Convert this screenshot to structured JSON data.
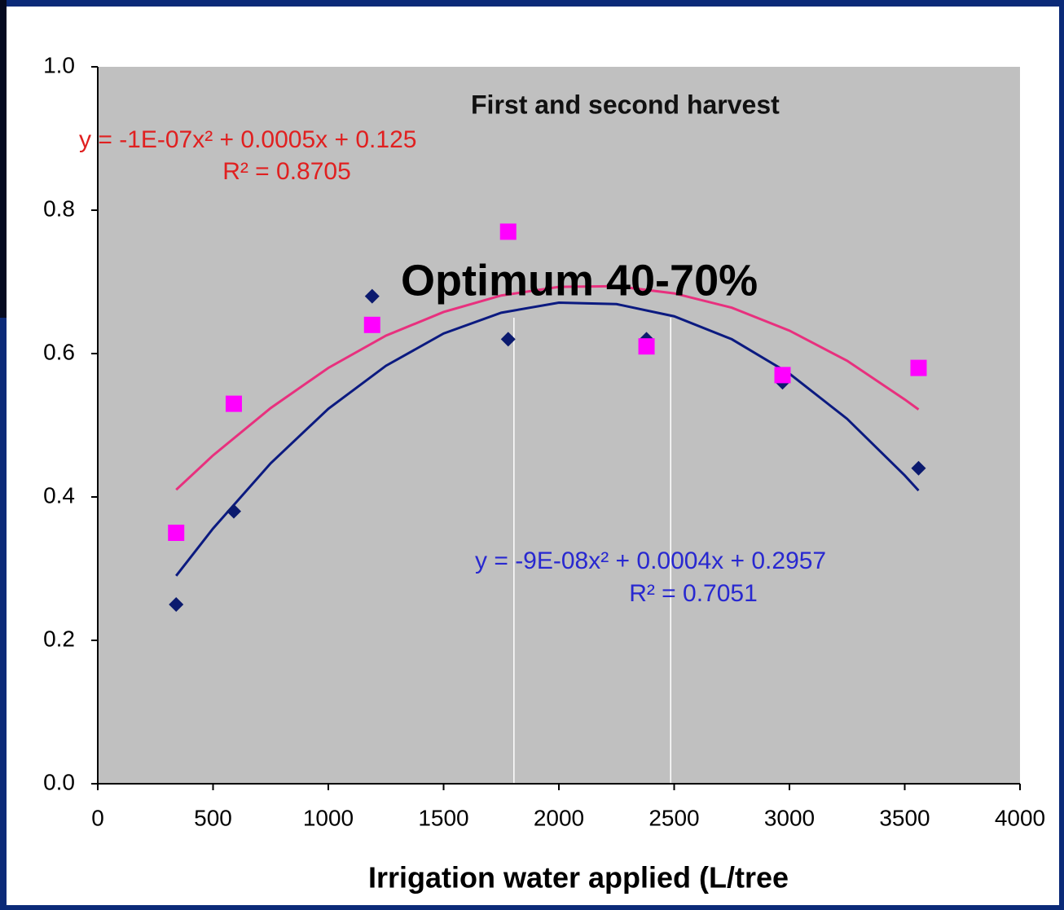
{
  "chart_data": {
    "type": "scatter",
    "title": "First and second harvest",
    "x_label": "Irrigation water applied (L/tree",
    "annotation": "Optimum 40-70%",
    "xlim": [
      0,
      4000
    ],
    "xticks": [
      0,
      500,
      1000,
      1500,
      2000,
      2500,
      3000,
      3500,
      4000
    ],
    "ylim": [
      0,
      1
    ],
    "yticks": [
      {
        "value": 0,
        "label": "0.0"
      },
      0.2,
      0.4,
      0.6,
      0.8,
      {
        "value": 1,
        "label": "1.0"
      }
    ],
    "grid": false,
    "reference_lines": {
      "x": [
        1805,
        2485
      ],
      "top": 0.65,
      "color": "#ffffff"
    },
    "series": [
      {
        "marker": "diamond",
        "color": "#0b1a6e",
        "line_color": "#0b1a80",
        "text_color": "#2828d0",
        "x": [
          340,
          590,
          1190,
          1780,
          2380,
          2970,
          3560
        ],
        "values": [
          0.25,
          0.38,
          0.68,
          0.62,
          0.62,
          0.56,
          0.44
        ],
        "equation": [
          "y = -9E-08x² + 0.0004x + 0.2957",
          "R² = 0.7051"
        ],
        "trendline": {
          "x": [
            340,
            500,
            750,
            1000,
            1250,
            1500,
            1750,
            2000,
            2250,
            2500,
            2750,
            3000,
            3250,
            3500,
            3560
          ],
          "values": [
            0.29,
            0.356,
            0.447,
            0.523,
            0.583,
            0.628,
            0.657,
            0.671,
            0.669,
            0.652,
            0.62,
            0.572,
            0.509,
            0.43,
            0.409
          ]
        }
      },
      {
        "marker": "square",
        "color": "#ff00ff",
        "line_color": "#e8307e",
        "text_color": "#e02020",
        "x": [
          340,
          590,
          1190,
          1780,
          2380,
          2970,
          3560
        ],
        "values": [
          0.35,
          0.53,
          0.64,
          0.77,
          0.61,
          0.57,
          0.58
        ],
        "equation": [
          "y = -1E-07x² + 0.0005x + 0.125",
          "R² = 0.8705"
        ],
        "trendline": {
          "x": [
            340,
            500,
            750,
            1000,
            1250,
            1500,
            1750,
            2000,
            2250,
            2500,
            2750,
            3000,
            3250,
            3500,
            3560
          ],
          "values": [
            0.41,
            0.458,
            0.524,
            0.58,
            0.625,
            0.658,
            0.681,
            0.693,
            0.694,
            0.684,
            0.664,
            0.632,
            0.59,
            0.536,
            0.522
          ]
        }
      }
    ]
  }
}
